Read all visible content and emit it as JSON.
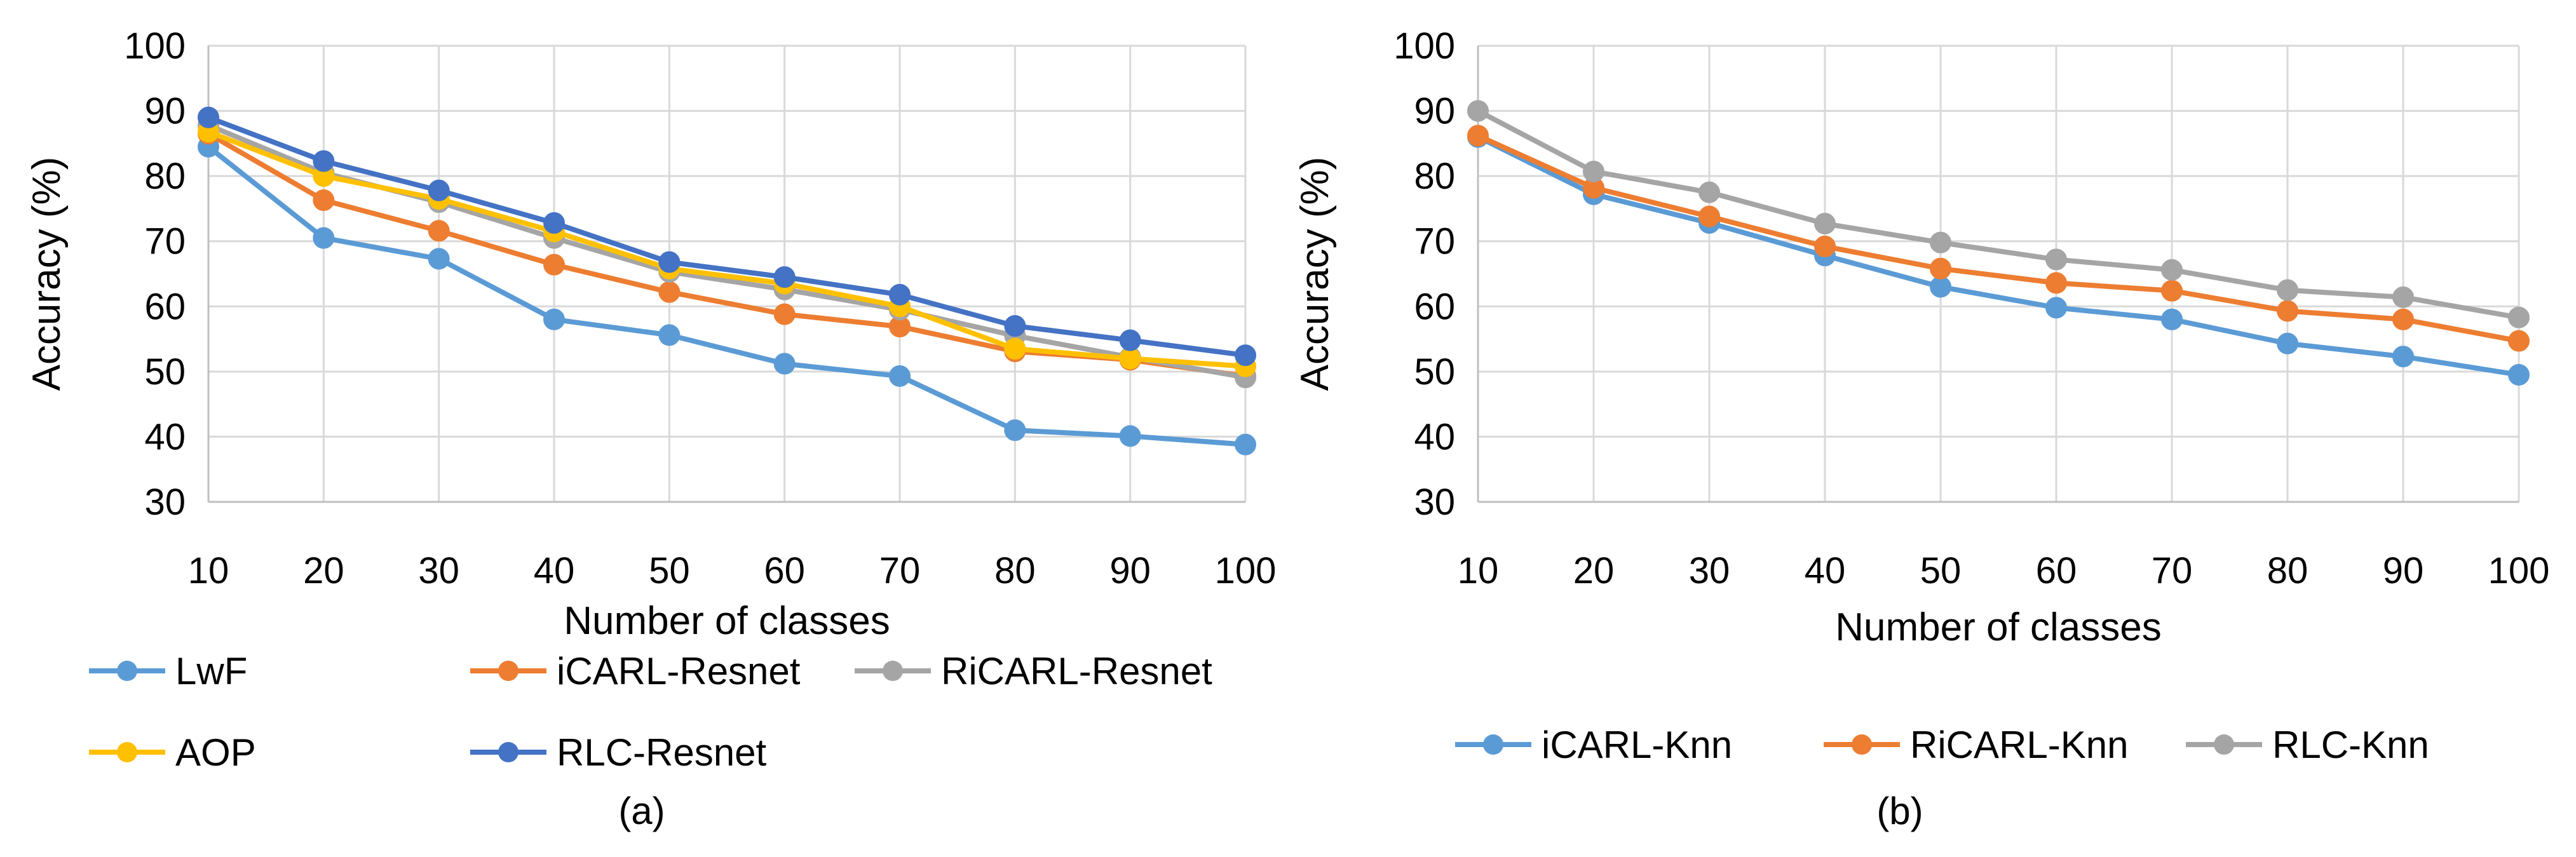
{
  "chart_data": [
    {
      "type": "line",
      "caption": "(a)",
      "xlabel": "Number of classes",
      "ylabel": "Accuracy (%)",
      "x": [
        10,
        20,
        30,
        40,
        50,
        60,
        70,
        80,
        90,
        100
      ],
      "x_ticks": [
        "10",
        "20",
        "30",
        "40",
        "50",
        "60",
        "70",
        "80",
        "90",
        "100"
      ],
      "ylim": [
        30,
        100
      ],
      "y_ticks": [
        "30",
        "40",
        "50",
        "60",
        "70",
        "80",
        "90",
        "100"
      ],
      "grid": true,
      "legend_position": "bottom",
      "series": [
        {
          "name": "LwF",
          "color": "#5b9bd5",
          "values": [
            84.5,
            70.5,
            67.3,
            58.0,
            55.6,
            51.2,
            49.3,
            41.0,
            40.1,
            38.8
          ]
        },
        {
          "name": "iCARL-Resnet",
          "color": "#ed7d31",
          "values": [
            86.5,
            76.3,
            71.6,
            66.4,
            62.2,
            58.8,
            56.9,
            53.1,
            51.8,
            49.3
          ]
        },
        {
          "name": "RiCARL-Resnet",
          "color": "#a5a5a5",
          "values": [
            87.8,
            80.5,
            76.0,
            70.5,
            65.3,
            62.6,
            59.5,
            55.5,
            52.2,
            49.1
          ]
        },
        {
          "name": "AOP",
          "color": "#ffc000",
          "values": [
            86.8,
            80.0,
            76.5,
            71.5,
            65.8,
            63.5,
            60.0,
            53.5,
            52.0,
            50.8
          ]
        },
        {
          "name": "RLC-Resnet",
          "color": "#4472c4",
          "values": [
            89.0,
            82.3,
            77.8,
            72.8,
            66.8,
            64.5,
            61.8,
            57.0,
            54.8,
            52.5
          ]
        }
      ]
    },
    {
      "type": "line",
      "caption": "(b)",
      "xlabel": "Number of classes",
      "ylabel": "Accuracy (%)",
      "x": [
        10,
        20,
        30,
        40,
        50,
        60,
        70,
        80,
        90,
        100
      ],
      "x_ticks": [
        "10",
        "20",
        "30",
        "40",
        "50",
        "60",
        "70",
        "80",
        "90",
        "100"
      ],
      "ylim": [
        30,
        100
      ],
      "y_ticks": [
        "30",
        "40",
        "50",
        "60",
        "70",
        "80",
        "90",
        "100"
      ],
      "grid": true,
      "legend_position": "bottom",
      "series": [
        {
          "name": "iCARL-Knn",
          "color": "#5b9bd5",
          "values": [
            86.0,
            77.2,
            72.8,
            67.8,
            63.0,
            59.8,
            58.0,
            54.3,
            52.3,
            49.5
          ]
        },
        {
          "name": "RiCARL-Knn",
          "color": "#ed7d31",
          "values": [
            86.2,
            78.2,
            73.8,
            69.2,
            65.8,
            63.6,
            62.4,
            59.3,
            58.0,
            54.7
          ]
        },
        {
          "name": "RLC-Knn",
          "color": "#a5a5a5",
          "values": [
            90.0,
            80.7,
            77.5,
            72.7,
            69.8,
            67.2,
            65.6,
            62.5,
            61.4,
            58.3
          ]
        }
      ]
    }
  ]
}
